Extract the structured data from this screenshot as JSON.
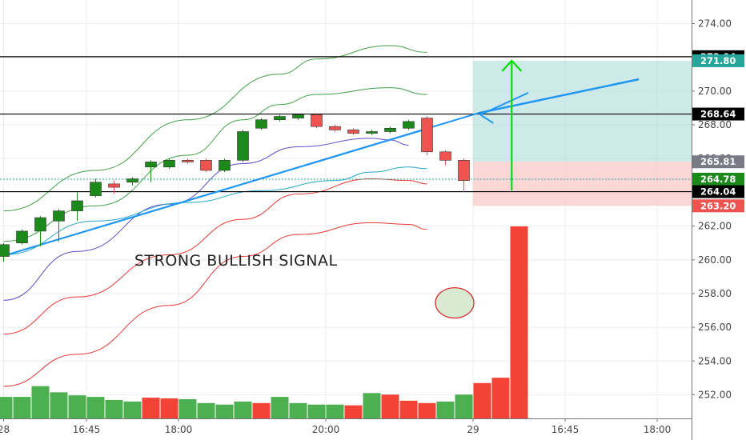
{
  "chart_data": {
    "type": "candlestick",
    "annotation": "STRONG BULLISH SIGNAL",
    "y_ticks": [
      252,
      254,
      256,
      258,
      260,
      262,
      264,
      266,
      268,
      270,
      272,
      274
    ],
    "y_tick_labels": [
      "252.00",
      "254.00",
      "256.00",
      "258.00",
      "260.00",
      "262.00",
      "264.00",
      "266.00",
      "268.00",
      "270.00",
      "272.00",
      "274.00"
    ],
    "ylim": [
      250.6,
      275.4
    ],
    "x_ticks": [
      "28",
      "16:45",
      "18:00",
      "20:00",
      "29",
      "16:45",
      "18:00"
    ],
    "x_tick_index": [
      0,
      4.5,
      9.5,
      17.5,
      25.5,
      30.5,
      35.5
    ],
    "candles": [
      {
        "o": 260.2,
        "c": 260.9,
        "h": 261.0,
        "l": 259.9
      },
      {
        "o": 261.0,
        "c": 261.7,
        "h": 261.8,
        "l": 260.9
      },
      {
        "o": 261.7,
        "c": 262.5,
        "h": 262.6,
        "l": 260.8
      },
      {
        "o": 262.3,
        "c": 262.9,
        "h": 263.0,
        "l": 261.1
      },
      {
        "o": 262.9,
        "c": 263.5,
        "h": 264.0,
        "l": 262.3
      },
      {
        "o": 263.8,
        "c": 264.6,
        "h": 264.8,
        "l": 263.7
      },
      {
        "o": 264.5,
        "c": 264.3,
        "h": 264.7,
        "l": 263.9
      },
      {
        "o": 264.6,
        "c": 264.8,
        "h": 264.9,
        "l": 264.4
      },
      {
        "o": 265.5,
        "c": 265.8,
        "h": 265.9,
        "l": 264.6
      },
      {
        "o": 265.5,
        "c": 265.9,
        "h": 266.0,
        "l": 265.4
      },
      {
        "o": 265.9,
        "c": 265.8,
        "h": 266.0,
        "l": 265.7
      },
      {
        "o": 265.9,
        "c": 265.3,
        "h": 266.0,
        "l": 265.2
      },
      {
        "o": 265.3,
        "c": 265.9,
        "h": 266.0,
        "l": 265.2
      },
      {
        "o": 265.9,
        "c": 267.6,
        "h": 267.7,
        "l": 265.8
      },
      {
        "o": 267.8,
        "c": 268.3,
        "h": 268.4,
        "l": 267.7
      },
      {
        "o": 268.3,
        "c": 268.5,
        "h": 268.6,
        "l": 268.2
      },
      {
        "o": 268.4,
        "c": 268.6,
        "h": 268.6,
        "l": 268.3
      },
      {
        "o": 268.6,
        "c": 267.9,
        "h": 268.7,
        "l": 267.8
      },
      {
        "o": 267.9,
        "c": 267.7,
        "h": 268.0,
        "l": 267.6
      },
      {
        "o": 267.7,
        "c": 267.5,
        "h": 267.8,
        "l": 267.4
      },
      {
        "o": 267.5,
        "c": 267.6,
        "h": 267.7,
        "l": 267.4
      },
      {
        "o": 267.6,
        "c": 267.8,
        "h": 267.9,
        "l": 267.5
      },
      {
        "o": 267.8,
        "c": 268.2,
        "h": 268.3,
        "l": 267.7
      },
      {
        "o": 268.4,
        "c": 266.4,
        "h": 268.5,
        "l": 266.2
      },
      {
        "o": 266.4,
        "c": 265.9,
        "h": 266.5,
        "l": 265.6
      },
      {
        "o": 265.9,
        "c": 264.7,
        "h": 266.0,
        "l": 264.0
      }
    ],
    "volume": [
      28,
      28,
      42,
      34,
      30,
      28,
      24,
      22,
      27,
      26,
      25,
      20,
      18,
      22,
      20,
      28,
      20,
      18,
      18,
      17,
      33,
      31,
      23,
      20,
      22,
      31,
      46,
      53,
      250
    ],
    "volume_ref_max": 250,
    "volume_up": [
      true,
      true,
      true,
      true,
      true,
      true,
      true,
      true,
      false,
      false,
      true,
      true,
      true,
      true,
      false,
      true,
      true,
      true,
      true,
      false,
      true,
      false,
      false,
      false,
      true,
      true,
      false,
      false,
      false
    ],
    "bands": {
      "upper_outer": [
        {
          "x": 0,
          "y": 262.9
        },
        {
          "x": 5,
          "y": 265.3
        },
        {
          "x": 10,
          "y": 268.3
        },
        {
          "x": 15,
          "y": 271.0
        },
        {
          "x": 17,
          "y": 271.9
        },
        {
          "x": 21,
          "y": 272.7
        },
        {
          "x": 23,
          "y": 272.3
        }
      ],
      "upper_inner": [
        {
          "x": 0,
          "y": 261.1
        },
        {
          "x": 5,
          "y": 263.2
        },
        {
          "x": 10,
          "y": 266.2
        },
        {
          "x": 13,
          "y": 268.3
        },
        {
          "x": 15,
          "y": 269.2
        },
        {
          "x": 17,
          "y": 269.8
        },
        {
          "x": 21,
          "y": 270.2
        },
        {
          "x": 23,
          "y": 269.8
        }
      ],
      "basis_purple": [
        {
          "x": 0,
          "y": 257.6
        },
        {
          "x": 4,
          "y": 260.5
        },
        {
          "x": 9,
          "y": 263.3
        },
        {
          "x": 13,
          "y": 265.7
        },
        {
          "x": 16,
          "y": 266.7
        },
        {
          "x": 20,
          "y": 267.2
        },
        {
          "x": 21,
          "y": 267.1
        },
        {
          "x": 22,
          "y": 266.8
        }
      ],
      "basis_teal": [
        {
          "x": 0,
          "y": 260.3
        },
        {
          "x": 5,
          "y": 262.3
        },
        {
          "x": 10,
          "y": 263.4
        },
        {
          "x": 14,
          "y": 264.1
        },
        {
          "x": 18,
          "y": 264.7
        },
        {
          "x": 20,
          "y": 265.2
        },
        {
          "x": 22,
          "y": 265.5
        },
        {
          "x": 23,
          "y": 265.4
        }
      ],
      "lower_inner": [
        {
          "x": 0,
          "y": 255.6
        },
        {
          "x": 4,
          "y": 257.8
        },
        {
          "x": 9,
          "y": 260.3
        },
        {
          "x": 13,
          "y": 262.4
        },
        {
          "x": 16,
          "y": 263.9
        },
        {
          "x": 20,
          "y": 264.8
        },
        {
          "x": 22,
          "y": 264.7
        },
        {
          "x": 23,
          "y": 264.5
        }
      ],
      "lower_outer": [
        {
          "x": 0,
          "y": 252.5
        },
        {
          "x": 4,
          "y": 254.4
        },
        {
          "x": 9,
          "y": 257.3
        },
        {
          "x": 13,
          "y": 260.2
        },
        {
          "x": 16,
          "y": 261.5
        },
        {
          "x": 20,
          "y": 262.2
        },
        {
          "x": 22,
          "y": 262.1
        },
        {
          "x": 23,
          "y": 261.8
        }
      ]
    },
    "levels": [
      {
        "value": 272.04,
        "label": "272.04",
        "color": "#000000"
      },
      {
        "value": 268.64,
        "label": "268.64",
        "color": "#000000"
      },
      {
        "value": 264.04,
        "label": "264.04",
        "color": "#000000"
      }
    ],
    "dotted_level": {
      "value": 264.78,
      "color": "#26a69a"
    },
    "price_labels": [
      {
        "value": 272.04,
        "label": "272.04",
        "bg": "#000000",
        "fg": "#ffffff"
      },
      {
        "value": 271.8,
        "label": "271.80",
        "bg": "#26a69a",
        "fg": "#ffffff"
      },
      {
        "value": 268.64,
        "label": "268.64",
        "bg": "#000000",
        "fg": "#ffffff"
      },
      {
        "value": 265.81,
        "label": "265.81",
        "bg": "#787b86",
        "fg": "#ffffff"
      },
      {
        "value": 264.78,
        "label": "264.78",
        "bg": "#1b8a1b",
        "fg": "#ffffff"
      },
      {
        "value": 264.04,
        "label": "264.04",
        "bg": "#000000",
        "fg": "#ffffff"
      },
      {
        "value": 263.2,
        "label": "263.20",
        "bg": "#ef5350",
        "fg": "#ffffff"
      }
    ],
    "position": {
      "entry": 265.81,
      "target": 271.8,
      "stop": 263.2,
      "from_index": 25.5,
      "to_index": 37.4
    },
    "colors": {
      "up": "#1b8a1b",
      "down": "#ef5350",
      "grid": "#ececec",
      "trend": "#2196f3",
      "arrow": "#00e000",
      "band_green": "#43a047",
      "band_red": "#e53935",
      "band_purple": "#5c50c8",
      "band_teal": "#26a6c8"
    }
  }
}
